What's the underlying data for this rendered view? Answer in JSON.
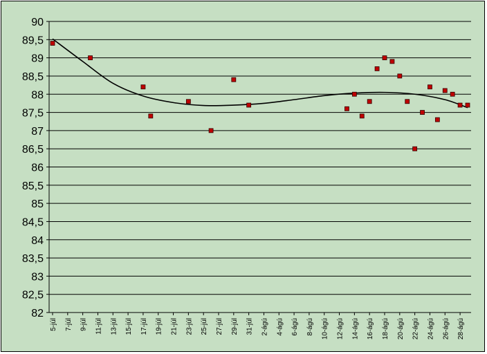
{
  "chart_data": {
    "type": "scatter",
    "title": "",
    "xlabel": "",
    "ylabel": "",
    "ylim": [
      82,
      90
    ],
    "y_ticks": [
      "82",
      "82,5",
      "83",
      "83,5",
      "84",
      "84,5",
      "85",
      "85,5",
      "86",
      "86,5",
      "87",
      "87,5",
      "88",
      "88,5",
      "89",
      "89,5",
      "90"
    ],
    "x_tick_labels": [
      "5-júl",
      "7-júl",
      "9-júl",
      "11-júl",
      "13-júl",
      "15-júl",
      "17-júl",
      "19-júl",
      "21-júl",
      "23-júl",
      "25-júl",
      "27-júl",
      "29-júl",
      "31-júl",
      "2-ágú",
      "4-ágú",
      "6-ágú",
      "8-ágú",
      "10-ágú",
      "12-ágú",
      "14-ágú",
      "16-ágú",
      "18-ágú",
      "20-ágú",
      "22-ágú",
      "24-ágú",
      "26-ágú",
      "28-ágú"
    ],
    "x_range": [
      "2000-07-05",
      "2000-08-29"
    ],
    "grid": true,
    "legend": "none",
    "series": [
      {
        "points": [
          {
            "x": "2000-07-05",
            "y": 89.4
          },
          {
            "x": "2000-07-10",
            "y": 89.0
          },
          {
            "x": "2000-07-17",
            "y": 88.2
          },
          {
            "x": "2000-07-18",
            "y": 87.4
          },
          {
            "x": "2000-07-23",
            "y": 87.8
          },
          {
            "x": "2000-07-26",
            "y": 87.0
          },
          {
            "x": "2000-07-29",
            "y": 88.4
          },
          {
            "x": "2000-07-31",
            "y": 87.7
          },
          {
            "x": "2000-08-13",
            "y": 87.6
          },
          {
            "x": "2000-08-14",
            "y": 88.0
          },
          {
            "x": "2000-08-15",
            "y": 87.4
          },
          {
            "x": "2000-08-16",
            "y": 87.8
          },
          {
            "x": "2000-08-17",
            "y": 88.7
          },
          {
            "x": "2000-08-18",
            "y": 89.0
          },
          {
            "x": "2000-08-19",
            "y": 88.9
          },
          {
            "x": "2000-08-20",
            "y": 88.5
          },
          {
            "x": "2000-08-21",
            "y": 87.8
          },
          {
            "x": "2000-08-22",
            "y": 86.5
          },
          {
            "x": "2000-08-23",
            "y": 87.5
          },
          {
            "x": "2000-08-24",
            "y": 88.2
          },
          {
            "x": "2000-08-25",
            "y": 87.3
          },
          {
            "x": "2000-08-26",
            "y": 88.1
          },
          {
            "x": "2000-08-27",
            "y": 88.0
          },
          {
            "x": "2000-08-28",
            "y": 87.7
          },
          {
            "x": "2000-08-29",
            "y": 87.7
          }
        ]
      }
    ],
    "trendline": [
      {
        "x": "2000-07-05",
        "y": 89.52
      },
      {
        "x": "2000-07-09",
        "y": 88.9
      },
      {
        "x": "2000-07-13",
        "y": 88.3
      },
      {
        "x": "2000-07-17",
        "y": 87.95
      },
      {
        "x": "2000-07-21",
        "y": 87.77
      },
      {
        "x": "2000-07-25",
        "y": 87.69
      },
      {
        "x": "2000-07-29",
        "y": 87.7
      },
      {
        "x": "2000-08-02",
        "y": 87.75
      },
      {
        "x": "2000-08-06",
        "y": 87.85
      },
      {
        "x": "2000-08-10",
        "y": 87.96
      },
      {
        "x": "2000-08-14",
        "y": 88.03
      },
      {
        "x": "2000-08-18",
        "y": 88.05
      },
      {
        "x": "2000-08-22",
        "y": 88.0
      },
      {
        "x": "2000-08-26",
        "y": 87.85
      },
      {
        "x": "2000-08-29",
        "y": 87.63
      }
    ],
    "colors": {
      "plot_background": "#c6dfc3",
      "marker_fill": "#c00000",
      "marker_edge": "#330000",
      "trendline": "#000000",
      "gridline": "#000000"
    }
  }
}
